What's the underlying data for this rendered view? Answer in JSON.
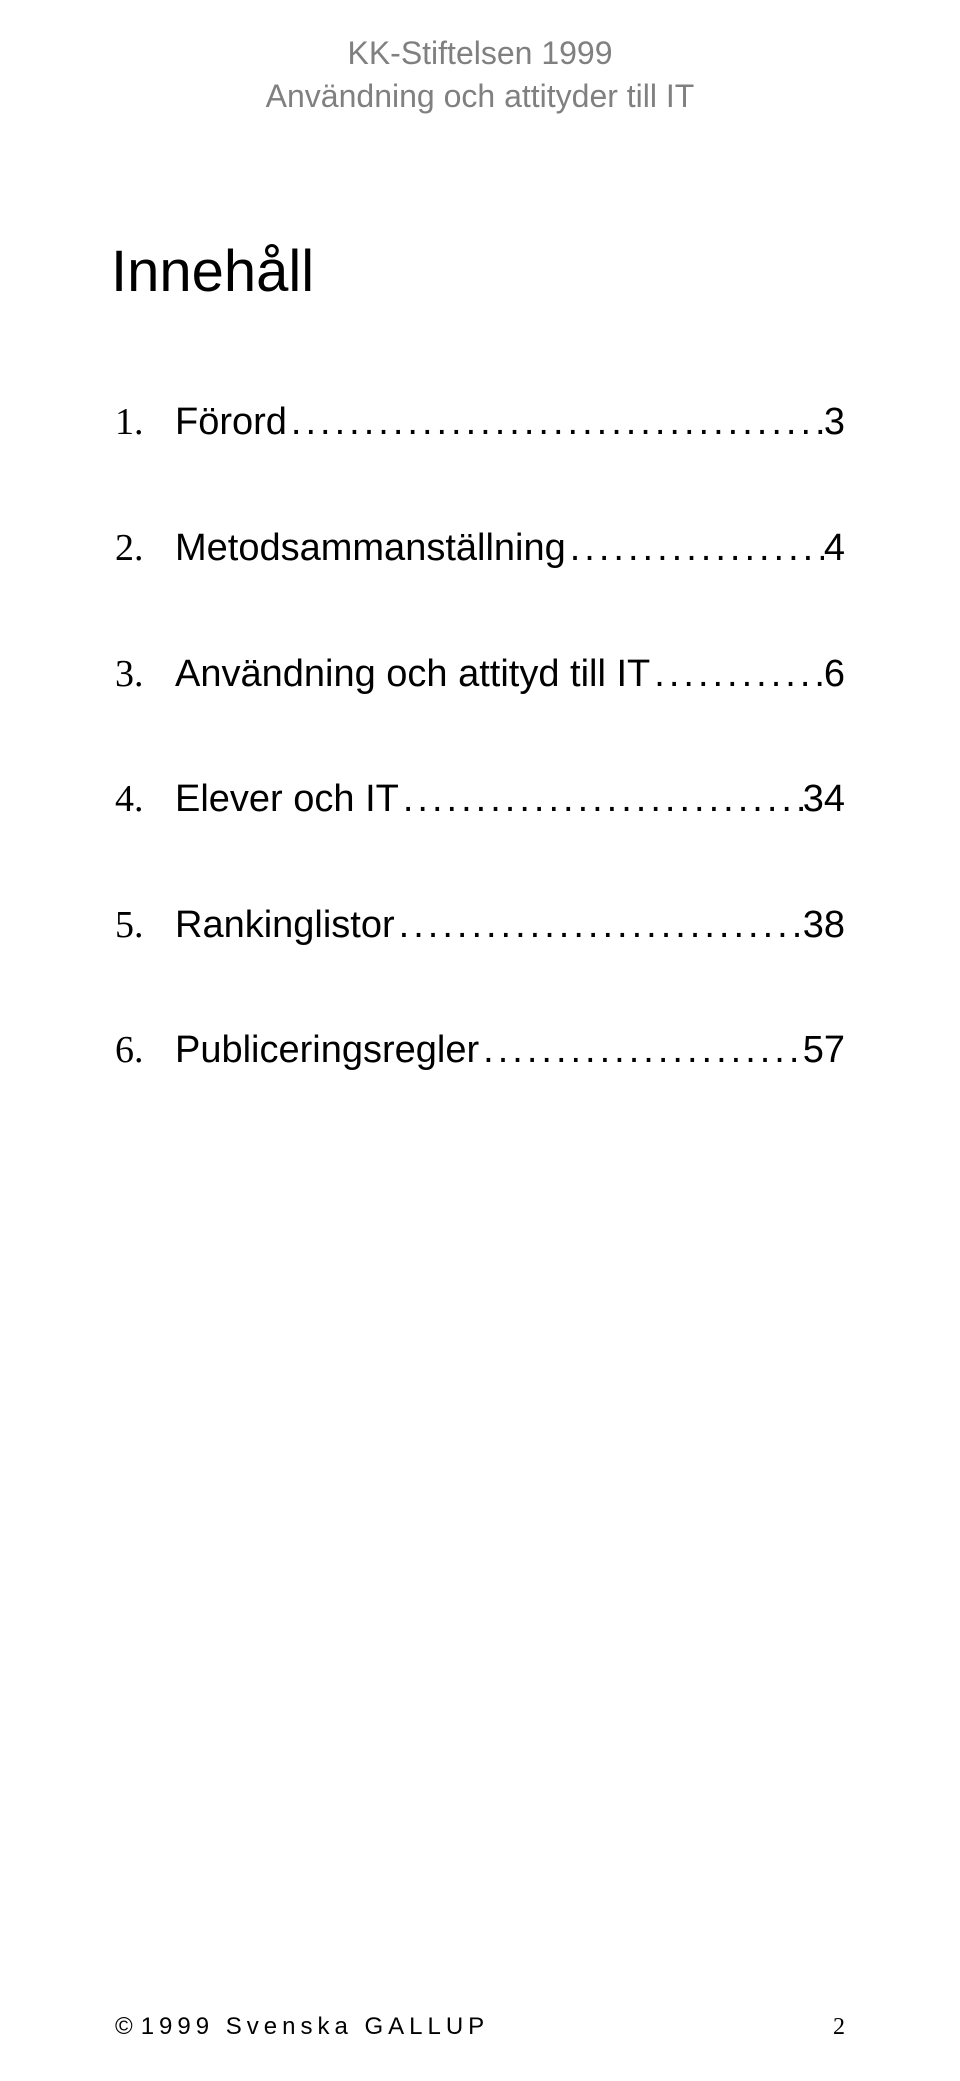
{
  "colors": {
    "background": "#ffffff",
    "header_text": "#808080",
    "body_text": "#000000"
  },
  "fonts": {
    "header_family": "Arial",
    "title_family": "Arial",
    "toc_number_family": "Times New Roman",
    "toc_label_family": "Arial",
    "footer_family": "Arial",
    "page_number_family": "Times New Roman",
    "header_size_pt": 24,
    "title_size_pt": 44,
    "toc_size_pt": 29,
    "footer_size_pt": 18
  },
  "header": {
    "line1": "KK-Stiftelsen 1999",
    "line2": "Användning och attityder till IT"
  },
  "title": "Innehåll",
  "toc": [
    {
      "num": "1.",
      "label": "Förord",
      "page": "3"
    },
    {
      "num": "2.",
      "label": "Metodsammanställning",
      "page": "4"
    },
    {
      "num": "3.",
      "label": "Användning och attityd till IT",
      "page": "6"
    },
    {
      "num": "4.",
      "label": "Elever och IT",
      "page": "34"
    },
    {
      "num": "5.",
      "label": "Rankinglistor",
      "page": "38"
    },
    {
      "num": "6.",
      "label": "Publiceringsregler",
      "page": "57"
    }
  ],
  "footer": {
    "copyright_symbol": "©",
    "text": "1999 Svenska GALLUP",
    "page_number": "2"
  }
}
